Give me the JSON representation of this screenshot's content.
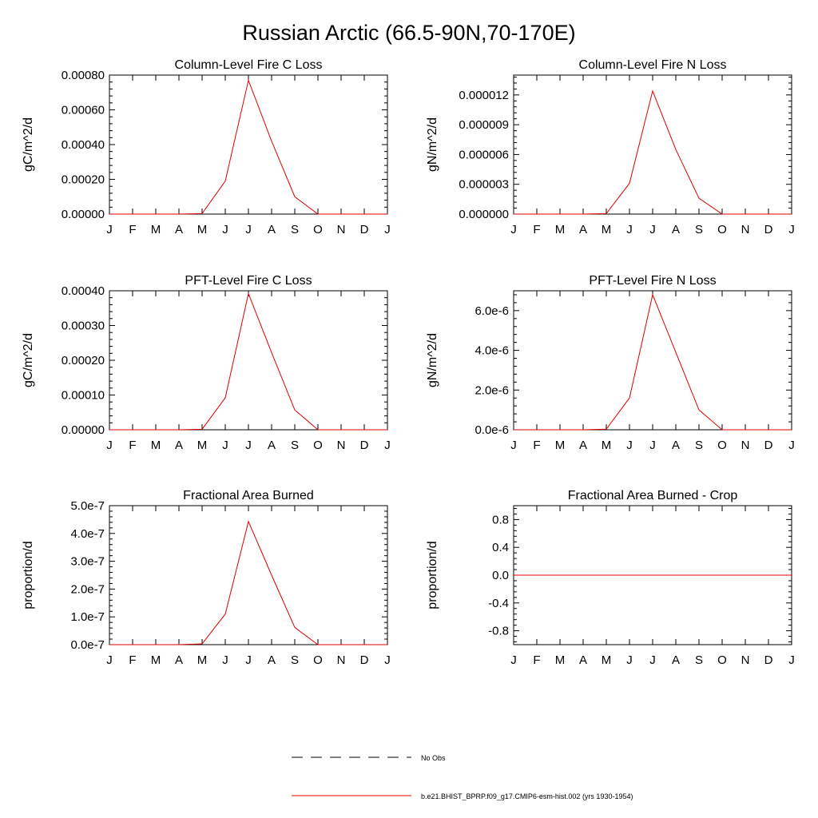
{
  "figure": {
    "title": "Russian Arctic (66.5-90N,70-170E)",
    "legend": {
      "placement": "bottom-center",
      "entries": [
        {
          "label": "No Obs",
          "style": "dashed",
          "color": "#000000"
        },
        {
          "label": "b.e21.BHIST_BPRP.f09_g17.CMIP6-esm-hist.002 (yrs 1930-1954)",
          "style": "solid",
          "color": "#e00000"
        }
      ]
    }
  },
  "chart_data": [
    {
      "type": "line",
      "title": "Column-Level Fire C Loss",
      "ylabel": "gC/m^2/d",
      "xlabel": "",
      "categories": [
        "J",
        "F",
        "M",
        "A",
        "M",
        "J",
        "J",
        "A",
        "S",
        "O",
        "N",
        "D",
        "J"
      ],
      "ylim": [
        0,
        0.0008
      ],
      "yticks": [
        0,
        0.0002,
        0.0004,
        0.0006,
        0.0008
      ],
      "yticklabels": [
        "0.00000",
        "0.00020",
        "0.00040",
        "0.00060",
        "0.00080"
      ],
      "series": [
        {
          "color": "#e00000",
          "values": [
            0,
            0,
            0,
            0,
            3e-06,
            0.00019,
            0.00077,
            0.00042,
            0.0001,
            0,
            0,
            0,
            0
          ]
        }
      ]
    },
    {
      "type": "line",
      "title": "Column-Level Fire N Loss",
      "ylabel": "gN/m^2/d",
      "xlabel": "",
      "categories": [
        "J",
        "F",
        "M",
        "A",
        "M",
        "J",
        "J",
        "A",
        "S",
        "O",
        "N",
        "D",
        "J"
      ],
      "ylim": [
        0,
        1.4e-05
      ],
      "yticks": [
        0,
        3e-06,
        6e-06,
        9e-06,
        1.2e-05
      ],
      "yticklabels": [
        "0.000000",
        "0.000003",
        "0.000006",
        "0.000009",
        "0.000012"
      ],
      "series": [
        {
          "color": "#e00000",
          "values": [
            0,
            0,
            0,
            0,
            5e-08,
            3.1e-06,
            1.24e-05,
            6.5e-06,
            1.6e-06,
            0,
            0,
            0,
            0
          ]
        }
      ]
    },
    {
      "type": "line",
      "title": "PFT-Level Fire C Loss",
      "ylabel": "gC/m^2/d",
      "xlabel": "",
      "categories": [
        "J",
        "F",
        "M",
        "A",
        "M",
        "J",
        "J",
        "A",
        "S",
        "O",
        "N",
        "D",
        "J"
      ],
      "ylim": [
        0,
        0.0004
      ],
      "yticks": [
        0,
        0.0001,
        0.0002,
        0.0003,
        0.0004
      ],
      "yticklabels": [
        "0.00000",
        "0.00010",
        "0.00020",
        "0.00030",
        "0.00040"
      ],
      "series": [
        {
          "color": "#e00000",
          "values": [
            0,
            0,
            0,
            0,
            1.5e-06,
            9.2e-05,
            0.000392,
            0.000222,
            5.7e-05,
            0,
            0,
            0,
            0
          ]
        }
      ]
    },
    {
      "type": "line",
      "title": "PFT-Level Fire N Loss",
      "ylabel": "gN/m^2/d",
      "xlabel": "",
      "categories": [
        "J",
        "F",
        "M",
        "A",
        "M",
        "J",
        "J",
        "A",
        "S",
        "O",
        "N",
        "D",
        "J"
      ],
      "ylim": [
        0,
        7e-06
      ],
      "yticks": [
        0,
        2e-06,
        4e-06,
        6e-06
      ],
      "yticklabels": [
        "0.0e-6",
        "2.0e-6",
        "4.0e-6",
        "6.0e-6"
      ],
      "series": [
        {
          "color": "#e00000",
          "values": [
            0,
            0,
            0,
            0,
            3e-08,
            1.6e-06,
            6.8e-06,
            3.9e-06,
            1e-06,
            0,
            0,
            0,
            0
          ]
        }
      ]
    },
    {
      "type": "line",
      "title": "Fractional Area Burned",
      "ylabel": "proportion/d",
      "xlabel": "",
      "categories": [
        "J",
        "F",
        "M",
        "A",
        "M",
        "J",
        "J",
        "A",
        "S",
        "O",
        "N",
        "D",
        "J"
      ],
      "ylim": [
        0,
        5e-07
      ],
      "yticks": [
        0,
        1e-07,
        2e-07,
        3e-07,
        4e-07,
        5e-07
      ],
      "yticklabels": [
        "0.0e-7",
        "1.0e-7",
        "2.0e-7",
        "3.0e-7",
        "4.0e-7",
        "5.0e-7"
      ],
      "series": [
        {
          "color": "#e00000",
          "values": [
            0,
            0,
            0,
            0,
            3e-09,
            1.1e-07,
            4.43e-07,
            2.5e-07,
            6.2e-08,
            0,
            0,
            0,
            0
          ]
        }
      ]
    },
    {
      "type": "line",
      "title": "Fractional Area Burned - Crop",
      "ylabel": "proportion/d",
      "xlabel": "",
      "categories": [
        "J",
        "F",
        "M",
        "A",
        "M",
        "J",
        "J",
        "A",
        "S",
        "O",
        "N",
        "D",
        "J"
      ],
      "ylim": [
        -1,
        1
      ],
      "yticks": [
        -0.8,
        -0.4,
        0,
        0.4,
        0.8
      ],
      "yticklabels": [
        "-0.8",
        "-0.4",
        "0.0",
        "0.4",
        "0.8"
      ],
      "series": [
        {
          "color": "#e00000",
          "values": [
            0,
            0,
            0,
            0,
            0,
            0,
            0,
            0,
            0,
            0,
            0,
            0,
            0
          ]
        }
      ]
    }
  ]
}
